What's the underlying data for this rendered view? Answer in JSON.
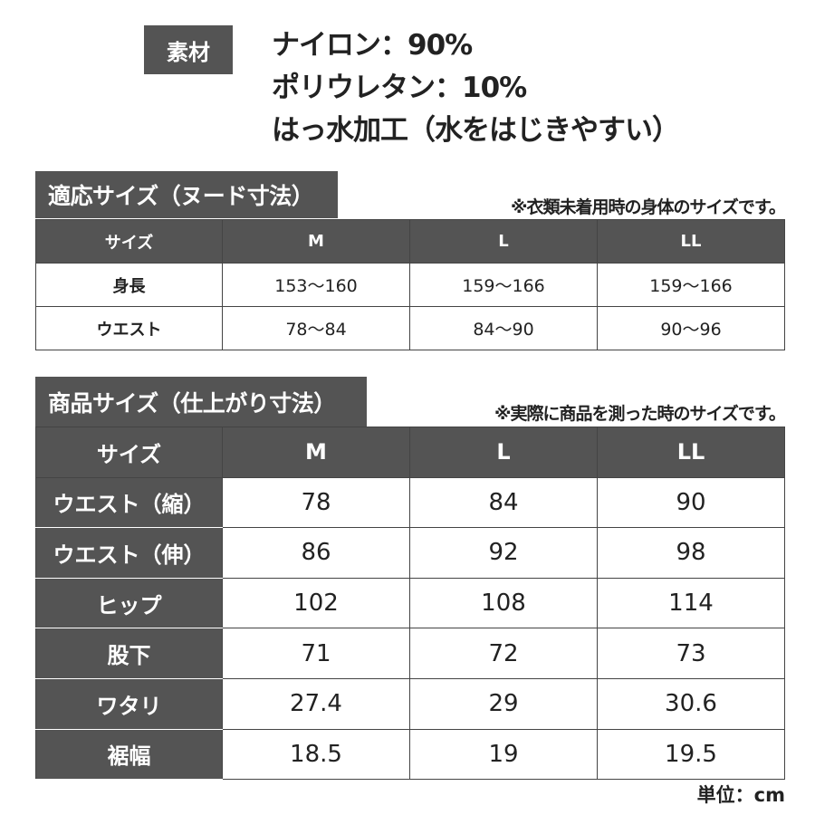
{
  "material": {
    "label": "素材",
    "lines": [
      "ナイロン：90%",
      "ポリウレタン：10%",
      "はっ水加工（水をはじきやすい）"
    ]
  },
  "body_size": {
    "title": "適応サイズ（ヌード寸法）",
    "note": "※衣類未着用時の身体のサイズです。",
    "headers": [
      "サイズ",
      "M",
      "L",
      "LL"
    ],
    "rows": [
      {
        "label": "身長",
        "values": [
          "153～160",
          "159～166",
          "159～166"
        ]
      },
      {
        "label": "ウエスト",
        "values": [
          "78～84",
          "84～90",
          "90～96"
        ]
      }
    ]
  },
  "garment_size": {
    "title": "商品サイズ（仕上がり寸法）",
    "note": "※実際に商品を測った時のサイズです。",
    "headers": [
      "サイズ",
      "M",
      "L",
      "LL"
    ],
    "rows": [
      {
        "label": "ウエスト（縮）",
        "values": [
          "78",
          "84",
          "90"
        ]
      },
      {
        "label": "ウエスト（伸）",
        "values": [
          "86",
          "92",
          "98"
        ]
      },
      {
        "label": "ヒップ",
        "values": [
          "102",
          "108",
          "114"
        ]
      },
      {
        "label": "股下",
        "values": [
          "71",
          "72",
          "73"
        ]
      },
      {
        "label": "ワタリ",
        "values": [
          "27.4",
          "29",
          "30.6"
        ]
      },
      {
        "label": "裾幅",
        "values": [
          "18.5",
          "19",
          "19.5"
        ]
      }
    ]
  },
  "unit": "単位：cm",
  "colors": {
    "header_bg": "#545454",
    "header_text": "#ffffff",
    "text": "#222222"
  }
}
